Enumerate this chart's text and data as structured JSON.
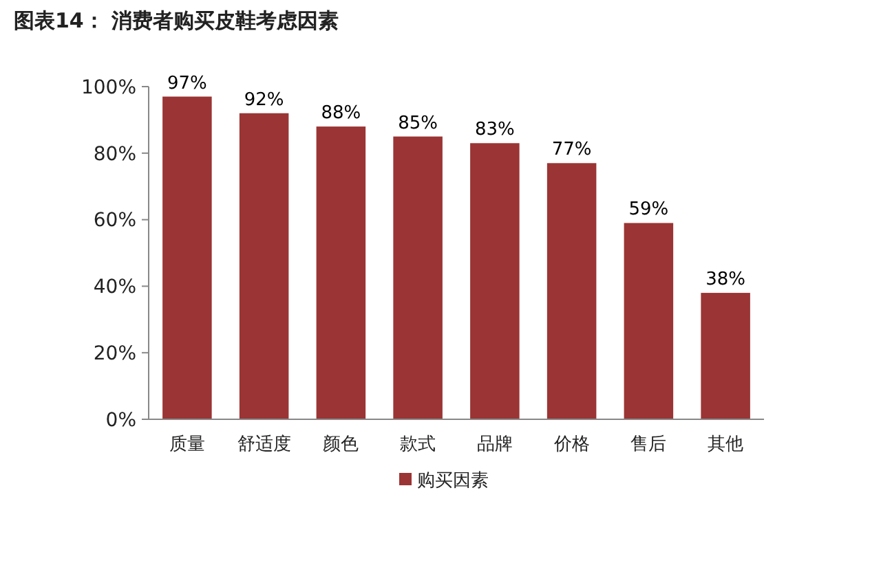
{
  "chart_data": {
    "type": "bar",
    "title": "图表14：  消费者购买皮鞋考虑因素",
    "categories": [
      "质量",
      "舒适度",
      "颜色",
      "款式",
      "品牌",
      "价格",
      "售后",
      "其他"
    ],
    "series": [
      {
        "name": "购买因素",
        "color": "#9b3434",
        "values": [
          97,
          92,
          88,
          85,
          83,
          77,
          59,
          38
        ],
        "value_labels": [
          "97%",
          "92%",
          "88%",
          "85%",
          "83%",
          "77%",
          "59%",
          "38%"
        ]
      }
    ],
    "ylim": [
      0,
      100
    ],
    "yticks": [
      {
        "value": 0,
        "label": "0%"
      },
      {
        "value": 20,
        "label": "20%"
      },
      {
        "value": 40,
        "label": "40%"
      },
      {
        "value": 60,
        "label": "60%"
      },
      {
        "value": 80,
        "label": "80%"
      },
      {
        "value": 100,
        "label": "100%"
      }
    ],
    "grid": false,
    "legend": "bottom"
  }
}
